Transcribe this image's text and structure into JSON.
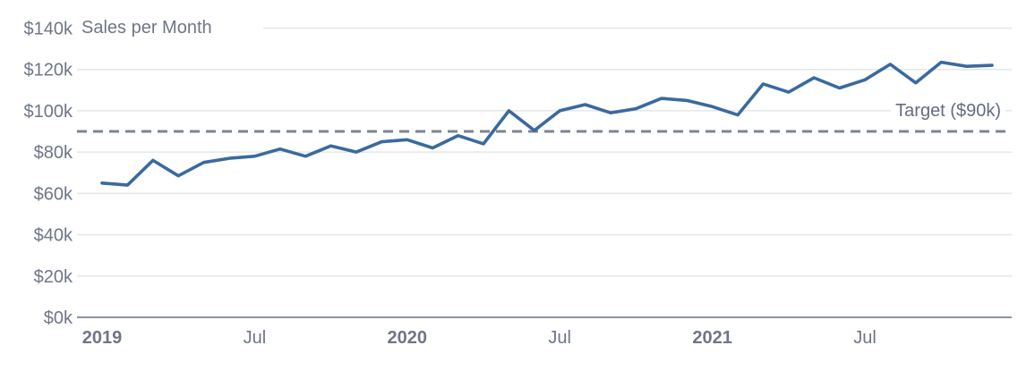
{
  "chart_data": {
    "type": "line",
    "title": "Sales per Month",
    "value_unit": "USD thousands",
    "categories": [
      "Jan 2019",
      "Feb 2019",
      "Mar 2019",
      "Apr 2019",
      "May 2019",
      "Jun 2019",
      "Jul 2019",
      "Aug 2019",
      "Sep 2019",
      "Oct 2019",
      "Nov 2019",
      "Dec 2019",
      "Jan 2020",
      "Feb 2020",
      "Mar 2020",
      "Apr 2020",
      "May 2020",
      "Jun 2020",
      "Jul 2020",
      "Aug 2020",
      "Sep 2020",
      "Oct 2020",
      "Nov 2020",
      "Dec 2020",
      "Jan 2021",
      "Feb 2021",
      "Mar 2021",
      "Apr 2021",
      "May 2021",
      "Jun 2021",
      "Jul 2021",
      "Aug 2021",
      "Sep 2021",
      "Oct 2021",
      "Nov 2021",
      "Dec 2021"
    ],
    "values": [
      65,
      64,
      76,
      68.5,
      75,
      77,
      78,
      81.5,
      78,
      83,
      80,
      85,
      86,
      82,
      88,
      84,
      100,
      90.5,
      100,
      103,
      99,
      101,
      106,
      105,
      102,
      98,
      113,
      109,
      116,
      111,
      115,
      122.5,
      113.5,
      123.5,
      121.5,
      122
    ],
    "target": {
      "label": "Target ($90k)",
      "value": 90
    },
    "y_axis": {
      "min": 0,
      "max": 140,
      "tick_step": 20,
      "tick_labels": [
        "$0k",
        "$20k",
        "$40k",
        "$60k",
        "$80k",
        "$100k",
        "$120k",
        "$140k"
      ]
    },
    "x_axis": {
      "ticks": [
        {
          "label": "2019",
          "month_index": 0,
          "bold": true
        },
        {
          "label": "Jul",
          "month_index": 6,
          "bold": false
        },
        {
          "label": "2020",
          "month_index": 12,
          "bold": true
        },
        {
          "label": "Jul",
          "month_index": 18,
          "bold": false
        },
        {
          "label": "2021",
          "month_index": 24,
          "bold": true
        },
        {
          "label": "Jul",
          "month_index": 30,
          "bold": false
        }
      ]
    },
    "legend": "none",
    "grid": "horizontal",
    "colors": {
      "line": "#3a6a9e",
      "grid": "#e4e6ea",
      "axis": "#8b93a1",
      "target_line": "#7c8493",
      "text": "#6e7686"
    }
  }
}
